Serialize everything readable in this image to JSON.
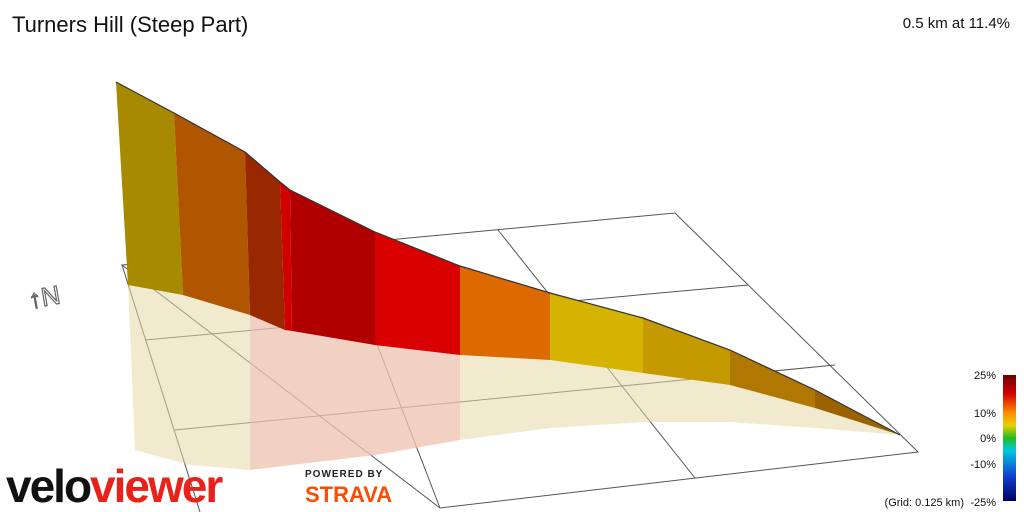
{
  "header": {
    "title": "Turners Hill (Steep Part)",
    "summary": "0.5 km at 11.4%"
  },
  "compass": "↑N",
  "legend": {
    "labels": [
      "25%",
      "10%",
      "0%",
      "-10%",
      "-25%"
    ],
    "grid_note": "(Grid: 0.125 km)"
  },
  "branding": {
    "logo_a": "velo",
    "logo_b": "viewer",
    "powered_by": "POWERED BY",
    "strava": "STRAVA"
  }
}
